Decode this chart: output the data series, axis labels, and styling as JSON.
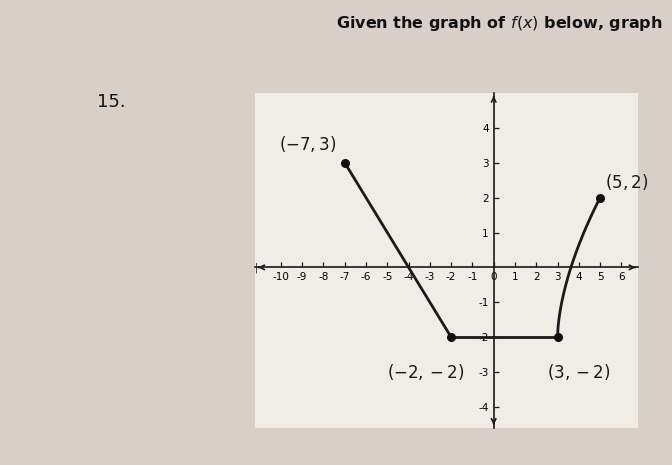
{
  "title_plain": "Given the graph of ",
  "title_bold_part": "below, graph",
  "problem_number": "15.",
  "points": [
    [
      -7,
      3
    ],
    [
      -2,
      -2
    ],
    [
      3,
      -2
    ],
    [
      5,
      2
    ]
  ],
  "point_labels": [
    "(-7, 3)",
    "(-2, -2)",
    "(3, -2)",
    "(5, 2)"
  ],
  "xlim": [
    -11.2,
    6.8
  ],
  "ylim": [
    -4.6,
    5.0
  ],
  "xticks": [
    -10,
    -9,
    -8,
    -7,
    -6,
    -5,
    -4,
    -3,
    -2,
    -1,
    0,
    1,
    2,
    3,
    4,
    5,
    6
  ],
  "yticks": [
    -4,
    -3,
    -2,
    -1,
    1,
    2,
    3,
    4
  ],
  "line_color": "#1a1a1a",
  "point_color": "#111111",
  "bg_outer": "#d8d0c8",
  "bg_paper": "#f0ece6",
  "axis_color": "#1a1a1a",
  "tick_fontsize": 7.5,
  "label_fontsize": 12,
  "title_fontsize": 12
}
